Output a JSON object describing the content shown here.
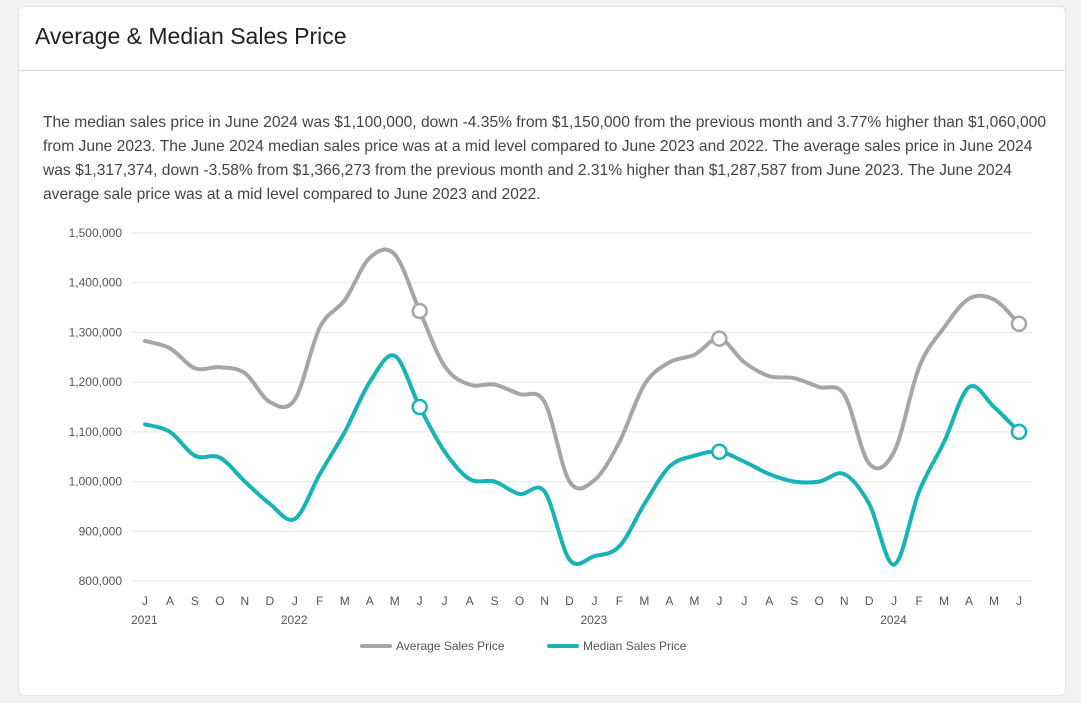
{
  "card": {
    "title": "Average & Median Sales Price",
    "description": "The median sales price in June 2024 was $1,100,000, down -4.35% from $1,150,000 from the previous month and 3.77% higher than $1,060,000 from June 2023. The June 2024 median sales price was at a mid level compared to June 2023 and 2022. The average sales price in June 2024 was $1,317,374, down -3.58% from $1,366,273 from the previous month and 2.31% higher than $1,287,587 from June 2023. The June 2024 average sale price was at a mid level compared to June 2023 and 2022."
  },
  "chart_data": {
    "type": "line",
    "title": "Average & Median Sales Price",
    "categories": [
      "J",
      "A",
      "S",
      "O",
      "N",
      "D",
      "J",
      "F",
      "M",
      "A",
      "M",
      "J",
      "J",
      "A",
      "S",
      "O",
      "N",
      "D",
      "J",
      "F",
      "M",
      "A",
      "M",
      "J",
      "J",
      "A",
      "S",
      "O",
      "N",
      "D",
      "J",
      "F",
      "M",
      "A",
      "M",
      "J"
    ],
    "year_labels": [
      {
        "index": 0,
        "label": "2021"
      },
      {
        "index": 6,
        "label": "2022"
      },
      {
        "index": 18,
        "label": "2023"
      },
      {
        "index": 30,
        "label": "2024"
      }
    ],
    "ylim": [
      800000,
      1500000
    ],
    "yticks": [
      800000,
      900000,
      1000000,
      1100000,
      1200000,
      1300000,
      1400000,
      1500000
    ],
    "ytick_labels": [
      "800,000",
      "900,000",
      "1,000,000",
      "1,100,000",
      "1,200,000",
      "1,300,000",
      "1,400,000",
      "1,500,000"
    ],
    "grid": true,
    "legend_position": "bottom-center",
    "series": [
      {
        "name": "Average Sales Price",
        "color": "#a6a6a6",
        "values": [
          1283000,
          1268000,
          1228000,
          1230000,
          1218000,
          1160000,
          1165000,
          1310000,
          1365000,
          1450000,
          1457000,
          1343000,
          1232000,
          1195000,
          1195000,
          1176000,
          1160000,
          1000000,
          1003000,
          1080000,
          1195000,
          1240000,
          1255000,
          1287587,
          1240000,
          1212000,
          1208000,
          1190000,
          1175000,
          1036000,
          1060000,
          1230000,
          1310000,
          1368000,
          1366273,
          1317374
        ],
        "highlight_indices": [
          11,
          23,
          35
        ]
      },
      {
        "name": "Median Sales Price",
        "color": "#17b3b6",
        "values": [
          1115000,
          1100000,
          1052000,
          1048000,
          1000000,
          955000,
          925000,
          1015000,
          1100000,
          1200000,
          1253000,
          1150000,
          1060000,
          1005000,
          1000000,
          975000,
          980000,
          843000,
          850000,
          870000,
          955000,
          1030000,
          1052000,
          1060000,
          1040000,
          1015000,
          1000000,
          1000000,
          1015000,
          955000,
          833000,
          980000,
          1080000,
          1190000,
          1150000,
          1100000
        ],
        "highlight_indices": [
          11,
          23,
          35
        ]
      }
    ]
  }
}
